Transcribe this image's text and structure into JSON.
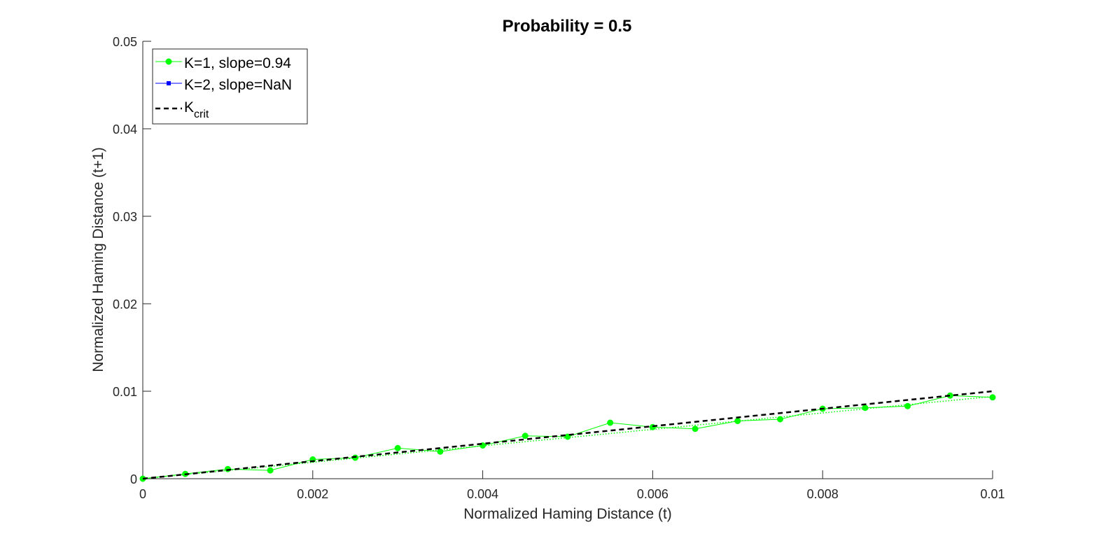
{
  "chart_data": {
    "type": "line",
    "title": "Probability = 0.5",
    "xlabel": "Normalized Haming Distance (t)",
    "ylabel": "Normalized Haming Distance (t+1)",
    "xlim": [
      0,
      0.01
    ],
    "ylim": [
      0,
      0.05
    ],
    "xticks": [
      0,
      0.002,
      0.004,
      0.006,
      0.008,
      0.01
    ],
    "xtick_labels": [
      "0",
      "0.002",
      "0.004",
      "0.006",
      "0.008",
      "0.01"
    ],
    "yticks": [
      0,
      0.01,
      0.02,
      0.03,
      0.04,
      0.05
    ],
    "ytick_labels": [
      "0",
      "0.01",
      "0.02",
      "0.03",
      "0.04",
      "0.05"
    ],
    "grid": false,
    "legend_position": "top-left",
    "series": [
      {
        "name": "K=1, slope=0.94",
        "color": "#00ff00",
        "marker": "circle",
        "x": [
          0,
          0.0005,
          0.001,
          0.0015,
          0.002,
          0.0025,
          0.003,
          0.0035,
          0.004,
          0.0045,
          0.005,
          0.0055,
          0.006,
          0.0065,
          0.007,
          0.0075,
          0.008,
          0.0085,
          0.009,
          0.0095,
          0.01
        ],
        "y": [
          0,
          0.00055,
          0.0011,
          0.00095,
          0.0022,
          0.0024,
          0.0035,
          0.0031,
          0.0038,
          0.0049,
          0.0048,
          0.0064,
          0.0059,
          0.0057,
          0.0066,
          0.0068,
          0.008,
          0.0081,
          0.0083,
          0.0095,
          0.0093
        ]
      },
      {
        "name": "K=2, slope=NaN",
        "color": "#0000ff",
        "marker": "square",
        "x": [],
        "y": []
      },
      {
        "name": "K",
        "name_subscript": "crit",
        "color": "#000000",
        "dash": "dashed",
        "x": [
          0,
          0.01
        ],
        "y": [
          0,
          0.01
        ]
      }
    ],
    "fit_lines": [
      {
        "color": "#00ff00",
        "style": "dotted",
        "slope": 0.94,
        "intercept": 0
      }
    ]
  }
}
